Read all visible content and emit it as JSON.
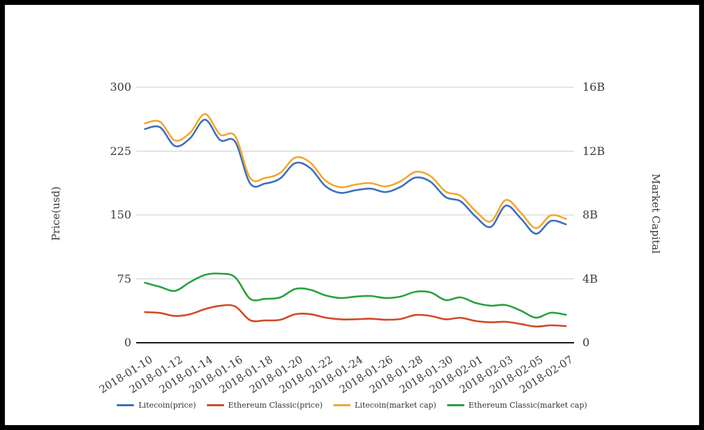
{
  "frame": {
    "background": "#ffffff",
    "border_color": "#000000"
  },
  "colors": {
    "grid": "#cccccc",
    "axis_baseline": "#1a1a1a",
    "text": "#3a3a3a",
    "litecoin_price": "#3d6fbf",
    "ethereum_classic_price": "#cf4a26",
    "litecoin_market_cap": "#f3a72c",
    "ethereum_classic_market_cap": "#28a23c"
  },
  "chart_data": {
    "type": "line",
    "title": "",
    "grid": true,
    "legend_position": "bottom",
    "x": [
      "2018-01-10",
      "2018-01-11",
      "2018-01-12",
      "2018-01-13",
      "2018-01-14",
      "2018-01-15",
      "2018-01-16",
      "2018-01-17",
      "2018-01-18",
      "2018-01-19",
      "2018-01-20",
      "2018-01-21",
      "2018-01-22",
      "2018-01-23",
      "2018-01-24",
      "2018-01-25",
      "2018-01-26",
      "2018-01-27",
      "2018-01-28",
      "2018-01-29",
      "2018-01-30",
      "2018-01-31",
      "2018-02-01",
      "2018-02-02",
      "2018-02-03",
      "2018-02-04",
      "2018-02-05",
      "2018-02-06",
      "2018-02-07"
    ],
    "x_tick_labels": [
      "2018-01-10",
      "2018-01-12",
      "2018-01-14",
      "2018-01-16",
      "2018-01-18",
      "2018-01-20",
      "2018-01-22",
      "2018-01-24",
      "2018-01-26",
      "2018-01-28",
      "2018-01-30",
      "2018-02-01",
      "2018-02-03",
      "2018-02-05",
      "2018-02-07"
    ],
    "left_axis": {
      "title": "Price(usd)",
      "min": 0,
      "max": 300,
      "ticks": [
        "0",
        "75",
        "150",
        "225",
        "300"
      ],
      "tick_values": [
        0,
        75,
        150,
        225,
        300
      ]
    },
    "right_axis": {
      "title": "Market Capital",
      "min": 0,
      "max": 16,
      "ticks": [
        "0",
        "4B",
        "8B",
        "12B",
        "16B"
      ],
      "tick_values": [
        0,
        4,
        8,
        12,
        16
      ]
    },
    "series": [
      {
        "name": "Litecoin(price)",
        "axis": "left",
        "color": "#3d6fbf",
        "values": [
          251,
          253,
          231,
          240,
          262,
          238,
          236,
          187,
          187,
          193,
          211,
          205,
          184,
          176,
          179,
          181,
          177,
          183,
          194,
          189,
          171,
          166,
          148,
          136,
          161,
          146,
          128,
          143,
          139
        ]
      },
      {
        "name": "Ethereum Classic(price)",
        "axis": "left",
        "color": "#cf4a26",
        "values": [
          36,
          35,
          31.5,
          33.5,
          39.5,
          43.4,
          42.6,
          26.5,
          26.2,
          27,
          33.5,
          33.5,
          29.5,
          27.5,
          27.5,
          28.2,
          27,
          27.9,
          32.6,
          31.5,
          27.5,
          29.3,
          25.5,
          24,
          24.6,
          22,
          19,
          20.5,
          19.5
        ]
      },
      {
        "name": "Litecoin(market cap)",
        "axis": "right",
        "color": "#f3a72c",
        "values": [
          13.74,
          13.84,
          12.67,
          13.15,
          14.32,
          13.04,
          12.94,
          10.32,
          10.32,
          10.64,
          11.6,
          11.28,
          10.16,
          9.74,
          9.9,
          10.0,
          9.79,
          10.11,
          10.7,
          10.43,
          9.47,
          9.2,
          8.24,
          7.6,
          8.94,
          8.14,
          7.18,
          7.98,
          7.76
        ]
      },
      {
        "name": "Ethereum Classic(market cap)",
        "axis": "right",
        "color": "#28a23c",
        "values": [
          3.76,
          3.5,
          3.25,
          3.8,
          4.25,
          4.33,
          4.1,
          2.75,
          2.75,
          2.84,
          3.37,
          3.32,
          2.97,
          2.8,
          2.89,
          2.93,
          2.8,
          2.89,
          3.19,
          3.15,
          2.67,
          2.84,
          2.49,
          2.32,
          2.36,
          2.01,
          1.57,
          1.88,
          1.75
        ]
      }
    ]
  },
  "layout_text": {
    "left_axis_title": "Price(usd)",
    "right_axis_title": "Market Capital"
  }
}
